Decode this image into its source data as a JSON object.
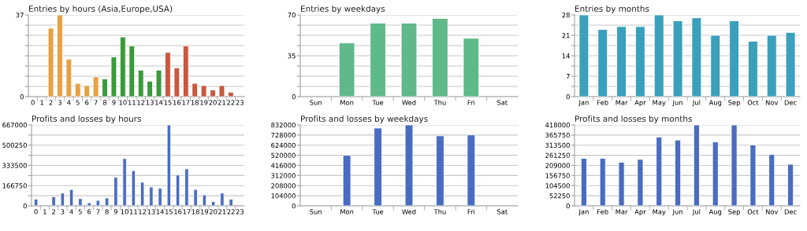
{
  "chart_data": [
    {
      "type": "bar",
      "title": "Entries by hours (Asia,Europe,USA)",
      "categories": [
        "0",
        "1",
        "2",
        "3",
        "4",
        "5",
        "6",
        "7",
        "8",
        "9",
        "10",
        "11",
        "12",
        "13",
        "14",
        "15",
        "16",
        "17",
        "18",
        "19",
        "20",
        "21",
        "22",
        "23"
      ],
      "values": [
        null,
        null,
        31,
        37,
        17,
        6,
        5,
        9,
        8,
        18,
        27,
        23,
        12,
        7,
        12,
        20,
        13,
        23,
        6,
        5,
        3,
        5,
        2,
        null
      ],
      "colors": [
        "#e8a040",
        "#e8a040",
        "#e8a040",
        "#e8a040",
        "#e8a040",
        "#e8a040",
        "#e8a040",
        "#e8a040",
        "#3a9a3a",
        "#3a9a3a",
        "#3a9a3a",
        "#3a9a3a",
        "#3a9a3a",
        "#3a9a3a",
        "#3a9a3a",
        "#c8583e",
        "#c8583e",
        "#c8583e",
        "#c8583e",
        "#c8583e",
        "#c8583e",
        "#c8583e",
        "#c8583e",
        "#c8583e"
      ],
      "ylim": [
        0,
        37
      ],
      "yticks": [
        0,
        {
          "value": 4.625,
          "label": null
        },
        {
          "value": 9.25,
          "label": null
        },
        {
          "value": 13.875,
          "label": null
        },
        {
          "value": 18.5,
          "label": null
        },
        {
          "value": 23.125,
          "label": null
        },
        {
          "value": 27.75,
          "label": null
        },
        {
          "value": 32.375,
          "label": null
        },
        37
      ],
      "grid": "y"
    },
    {
      "type": "bar",
      "title": "Entries by weekdays",
      "categories": [
        "Sun",
        "Mon",
        "Tue",
        "Wed",
        "Thu",
        "Fri",
        "Sat"
      ],
      "values": [
        null,
        46,
        63,
        63,
        67,
        50,
        null
      ],
      "color": "#5fb98a",
      "ylim": [
        0,
        70
      ],
      "yticks": [
        0,
        {
          "value": 8.75,
          "label": null
        },
        {
          "value": 17.5,
          "label": null
        },
        {
          "value": 26.25,
          "label": null
        },
        35,
        {
          "value": 43.75,
          "label": null
        },
        {
          "value": 52.5,
          "label": null
        },
        {
          "value": 61.25,
          "label": null
        },
        70
      ],
      "grid": "y"
    },
    {
      "type": "bar",
      "title": "Entries by months",
      "categories": [
        "Jan",
        "Feb",
        "Mar",
        "Apr",
        "May",
        "Jun",
        "Jul",
        "Aug",
        "Sep",
        "Oct",
        "Nov",
        "Dec"
      ],
      "values": [
        28,
        23,
        24,
        24,
        28,
        26,
        27,
        21,
        26,
        19,
        21,
        22
      ],
      "color": "#3aa0bb",
      "ylim": [
        0,
        28
      ],
      "yticks": [
        0,
        {
          "value": 3.5,
          "label": null
        },
        7,
        {
          "value": 10.5,
          "label": null
        },
        14,
        {
          "value": 17.5,
          "label": null
        },
        21,
        {
          "value": 24.5,
          "label": null
        },
        28
      ],
      "grid": "y"
    },
    {
      "type": "bar",
      "title": "Profits and losses by hours",
      "categories": [
        "0",
        "1",
        "2",
        "3",
        "4",
        "5",
        "6",
        "7",
        "8",
        "9",
        "10",
        "11",
        "12",
        "13",
        "14",
        "15",
        "16",
        "17",
        "18",
        "19",
        "20",
        "21",
        "22",
        "23"
      ],
      "values": [
        55000,
        0,
        75000,
        105000,
        135000,
        60000,
        25000,
        45000,
        65000,
        235000,
        390000,
        290000,
        195000,
        155000,
        145000,
        667000,
        255000,
        305000,
        135000,
        90000,
        35000,
        105000,
        55000,
        null
      ],
      "color": "#4a6cc0",
      "ylim": [
        0,
        667000
      ],
      "yticks": [
        0,
        {
          "value": 83375,
          "label": null
        },
        166750,
        {
          "value": 250125,
          "label": null
        },
        333500,
        {
          "value": 416875,
          "label": null
        },
        500250,
        {
          "value": 583625,
          "label": null
        },
        667000
      ],
      "grid": "y"
    },
    {
      "type": "bar",
      "title": "Profits and losses by weekdays",
      "categories": [
        "Sun",
        "Mon",
        "Tue",
        "Wed",
        "Thu",
        "Fri",
        "Sat"
      ],
      "values": [
        null,
        520000,
        800000,
        832000,
        720000,
        730000,
        null
      ],
      "color": "#4a6cc0",
      "ylim": [
        0,
        832000
      ],
      "yticks": [
        0,
        104000,
        208000,
        312000,
        416000,
        520000,
        624000,
        728000,
        832000
      ],
      "grid": "y"
    },
    {
      "type": "bar",
      "title": "Profits and losses by months",
      "categories": [
        "Jan",
        "Feb",
        "Mar",
        "Apr",
        "May",
        "Jun",
        "Jul",
        "Aug",
        "Sep",
        "Oct",
        "Nov",
        "Dec"
      ],
      "values": [
        245000,
        245000,
        225000,
        240000,
        355000,
        340000,
        418000,
        330000,
        418000,
        315000,
        265000,
        215000
      ],
      "color": "#4a6cc0",
      "ylim": [
        0,
        418000
      ],
      "yticks": [
        0,
        52250,
        104500,
        156750,
        209000,
        261250,
        313500,
        365750,
        418000
      ],
      "grid": "y"
    }
  ]
}
